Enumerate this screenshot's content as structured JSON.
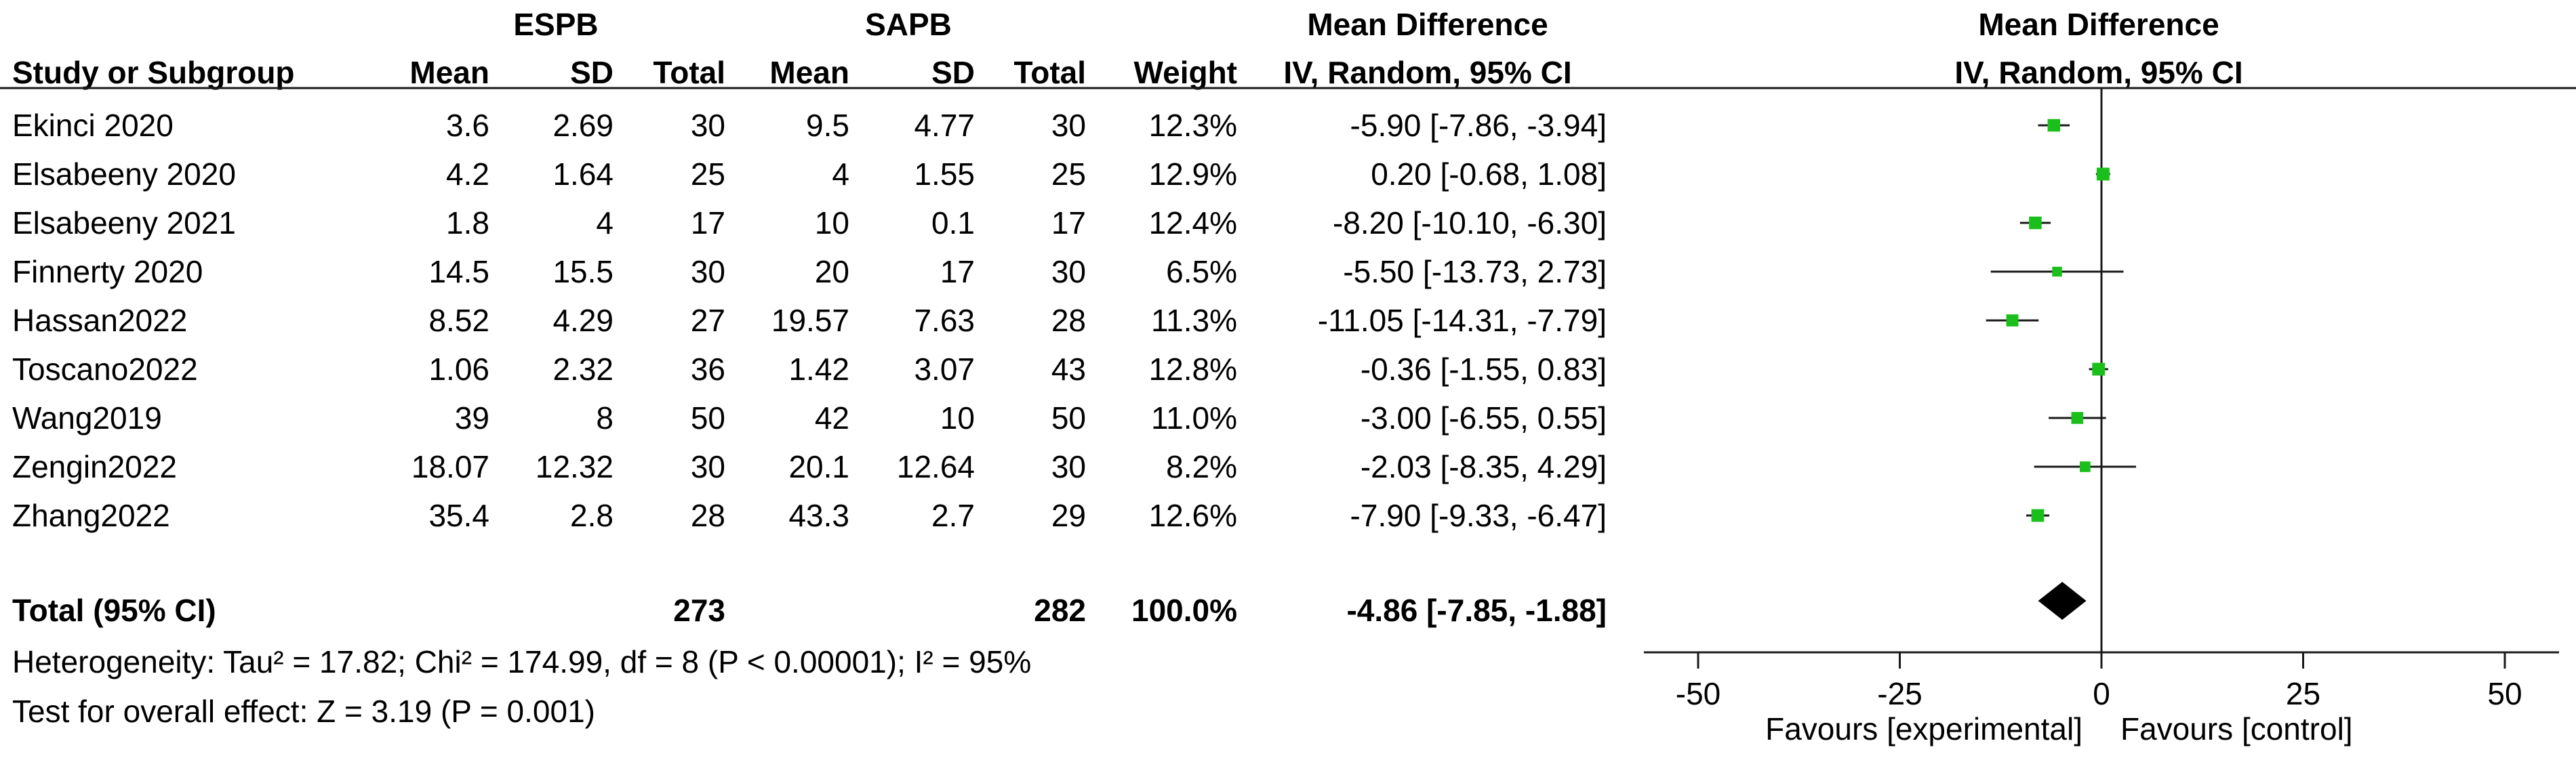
{
  "table": {
    "group_experimental": "ESPB",
    "group_control": "SAPB",
    "effect_header_line1": "Mean Difference",
    "effect_header_line2": "IV, Random, 95% CI",
    "plot_header_line1": "Mean Difference",
    "plot_header_line2": "IV, Random, 95% CI",
    "col_study": "Study or Subgroup",
    "col_mean": "Mean",
    "col_sd": "SD",
    "col_total": "Total",
    "col_weight": "Weight",
    "total_label": "Total (95% CI)",
    "total_n_exp": "273",
    "total_n_ctrl": "282",
    "total_weight": "100.0%",
    "total_ci_text": "-4.86 [-7.85, -1.88]",
    "heterogeneity": "Heterogeneity: Tau² = 17.82; Chi² = 174.99, df = 8 (P < 0.00001); I² = 95%",
    "overall_effect": "Test for overall effect: Z = 3.19 (P = 0.001)"
  },
  "chart_data": {
    "type": "forest",
    "xlim": [
      -50,
      50
    ],
    "ticks": [
      -50,
      -25,
      0,
      25,
      50
    ],
    "tick_labels": [
      "-50",
      "-25",
      "0",
      "25",
      "50"
    ],
    "favours_left": "Favours [experimental]",
    "favours_right": "Favours [control]",
    "marker_color": "#1bbf1b",
    "diamond_color": "#000000",
    "studies": [
      {
        "name": "Ekinci 2020",
        "exp_mean": "3.6",
        "exp_sd": "2.69",
        "exp_n": "30",
        "ctrl_mean": "9.5",
        "ctrl_sd": "4.77",
        "ctrl_n": "30",
        "weight": "12.3%",
        "ci_text": "-5.90 [-7.86, -3.94]",
        "md": -5.9,
        "lo": -7.86,
        "hi": -3.94
      },
      {
        "name": "Elsabeeny 2020",
        "exp_mean": "4.2",
        "exp_sd": "1.64",
        "exp_n": "25",
        "ctrl_mean": "4",
        "ctrl_sd": "1.55",
        "ctrl_n": "25",
        "weight": "12.9%",
        "ci_text": "0.20 [-0.68, 1.08]",
        "md": 0.2,
        "lo": -0.68,
        "hi": 1.08
      },
      {
        "name": "Elsabeeny 2021",
        "exp_mean": "1.8",
        "exp_sd": "4",
        "exp_n": "17",
        "ctrl_mean": "10",
        "ctrl_sd": "0.1",
        "ctrl_n": "17",
        "weight": "12.4%",
        "ci_text": "-8.20 [-10.10, -6.30]",
        "md": -8.2,
        "lo": -10.1,
        "hi": -6.3
      },
      {
        "name": "Finnerty 2020",
        "exp_mean": "14.5",
        "exp_sd": "15.5",
        "exp_n": "30",
        "ctrl_mean": "20",
        "ctrl_sd": "17",
        "ctrl_n": "30",
        "weight": "6.5%",
        "ci_text": "-5.50 [-13.73, 2.73]",
        "md": -5.5,
        "lo": -13.73,
        "hi": 2.73
      },
      {
        "name": "Hassan2022",
        "exp_mean": "8.52",
        "exp_sd": "4.29",
        "exp_n": "27",
        "ctrl_mean": "19.57",
        "ctrl_sd": "7.63",
        "ctrl_n": "28",
        "weight": "11.3%",
        "ci_text": "-11.05 [-14.31, -7.79]",
        "md": -11.05,
        "lo": -14.31,
        "hi": -7.79
      },
      {
        "name": "Toscano2022",
        "exp_mean": "1.06",
        "exp_sd": "2.32",
        "exp_n": "36",
        "ctrl_mean": "1.42",
        "ctrl_sd": "3.07",
        "ctrl_n": "43",
        "weight": "12.8%",
        "ci_text": "-0.36 [-1.55, 0.83]",
        "md": -0.36,
        "lo": -1.55,
        "hi": 0.83
      },
      {
        "name": "Wang2019",
        "exp_mean": "39",
        "exp_sd": "8",
        "exp_n": "50",
        "ctrl_mean": "42",
        "ctrl_sd": "10",
        "ctrl_n": "50",
        "weight": "11.0%",
        "ci_text": "-3.00 [-6.55, 0.55]",
        "md": -3.0,
        "lo": -6.55,
        "hi": 0.55
      },
      {
        "name": "Zengin2022",
        "exp_mean": "18.07",
        "exp_sd": "12.32",
        "exp_n": "30",
        "ctrl_mean": "20.1",
        "ctrl_sd": "12.64",
        "ctrl_n": "30",
        "weight": "8.2%",
        "ci_text": "-2.03 [-8.35, 4.29]",
        "md": -2.03,
        "lo": -8.35,
        "hi": 4.29
      },
      {
        "name": "Zhang2022",
        "exp_mean": "35.4",
        "exp_sd": "2.8",
        "exp_n": "28",
        "ctrl_mean": "43.3",
        "ctrl_sd": "2.7",
        "ctrl_n": "29",
        "weight": "12.6%",
        "ci_text": "-7.90 [-9.33, -6.47]",
        "md": -7.9,
        "lo": -9.33,
        "hi": -6.47
      }
    ],
    "pooled": {
      "md": -4.86,
      "lo": -7.85,
      "hi": -1.88
    }
  }
}
